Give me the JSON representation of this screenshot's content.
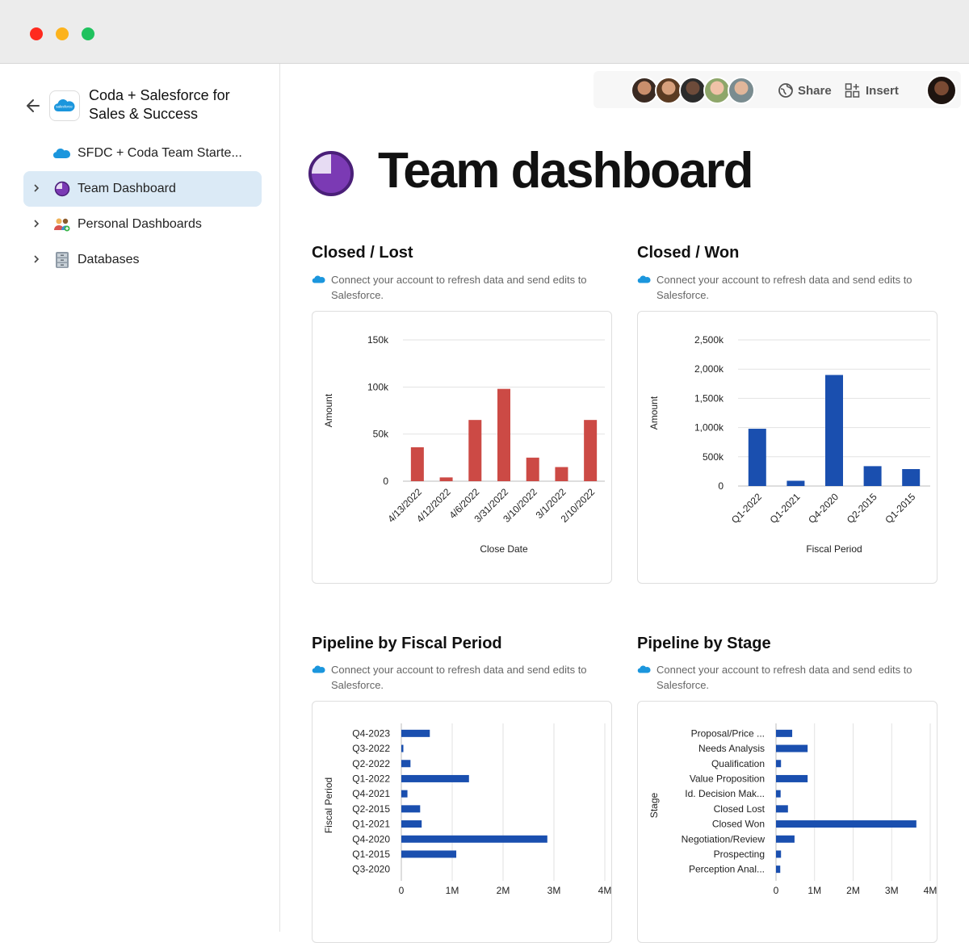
{
  "window": {
    "dots": [
      "#ff2a1f",
      "#fcb31d",
      "#20c25e"
    ]
  },
  "sidebar": {
    "doc_title": "Coda + Salesforce for Sales & Success",
    "items": [
      {
        "label": "SFDC + Coda Team Starte...",
        "icon": "salesforce-cloud-icon",
        "active": false
      },
      {
        "label": "Team Dashboard",
        "icon": "pie-icon",
        "active": true
      },
      {
        "label": "Personal Dashboards",
        "icon": "people-icon",
        "active": false
      },
      {
        "label": "Databases",
        "icon": "cabinet-icon",
        "active": false
      }
    ]
  },
  "toolbar": {
    "share_label": "Share",
    "insert_label": "Insert"
  },
  "page": {
    "title": "Team dashboard"
  },
  "connect_note": "Connect your account to refresh data and send edits to Salesforce.",
  "colors": {
    "red": "#cc4a45",
    "blue": "#1a4faf",
    "accent_purple": "#7b3ab4"
  },
  "chart_data": [
    {
      "id": "closed-lost",
      "heading": "Closed / Lost",
      "type": "bar",
      "categories": [
        "4/13/2022",
        "4/12/2022",
        "4/6/2022",
        "3/31/2022",
        "3/10/2022",
        "3/1/2022",
        "2/10/2022"
      ],
      "values": [
        36000,
        4000,
        65000,
        98000,
        25000,
        15000,
        65000
      ],
      "xlabel": "Close Date",
      "ylabel": "Amount",
      "ylim": [
        0,
        150000
      ],
      "yticks": [
        "0",
        "50k",
        "100k",
        "150k"
      ],
      "color": "#cc4a45"
    },
    {
      "id": "closed-won",
      "heading": "Closed / Won",
      "type": "bar",
      "categories": [
        "Q1-2022",
        "Q1-2021",
        "Q4-2020",
        "Q2-2015",
        "Q1-2015"
      ],
      "values": [
        980000,
        90000,
        1900000,
        340000,
        290000
      ],
      "xlabel": "Fiscal Period",
      "ylabel": "Amount",
      "ylim": [
        0,
        2500000
      ],
      "yticks": [
        "0",
        "500k",
        "1,000k",
        "1,500k",
        "2,000k",
        "2,500k"
      ],
      "color": "#1a4faf"
    },
    {
      "id": "pipeline-fiscal",
      "heading": "Pipeline by Fiscal Period",
      "type": "bar",
      "orientation": "horizontal",
      "categories": [
        "Q4-2023",
        "Q3-2022",
        "Q2-2022",
        "Q1-2022",
        "Q4-2021",
        "Q2-2015",
        "Q1-2021",
        "Q4-2020",
        "Q1-2015",
        "Q3-2020"
      ],
      "values": [
        560000,
        40000,
        180000,
        1330000,
        120000,
        370000,
        400000,
        2870000,
        1080000,
        0
      ],
      "ylabel": "Fiscal Period",
      "xlim": [
        0,
        4000000
      ],
      "xticks": [
        "0",
        "1M",
        "2M",
        "3M",
        "4M"
      ],
      "color": "#1a4faf"
    },
    {
      "id": "pipeline-stage",
      "heading": "Pipeline by Stage",
      "type": "bar",
      "orientation": "horizontal",
      "categories": [
        "Proposal/Price ...",
        "Needs Analysis",
        "Qualification",
        "Value Proposition",
        "Id. Decision Mak...",
        "Closed Lost",
        "Closed Won",
        "Negotiation/Review",
        "Prospecting",
        "Perception Anal..."
      ],
      "values": [
        420000,
        820000,
        130000,
        820000,
        120000,
        310000,
        3640000,
        480000,
        130000,
        110000
      ],
      "ylabel": "Stage",
      "xlim": [
        0,
        4000000
      ],
      "xticks": [
        "0",
        "1M",
        "2M",
        "3M",
        "4M"
      ],
      "color": "#1a4faf"
    }
  ]
}
